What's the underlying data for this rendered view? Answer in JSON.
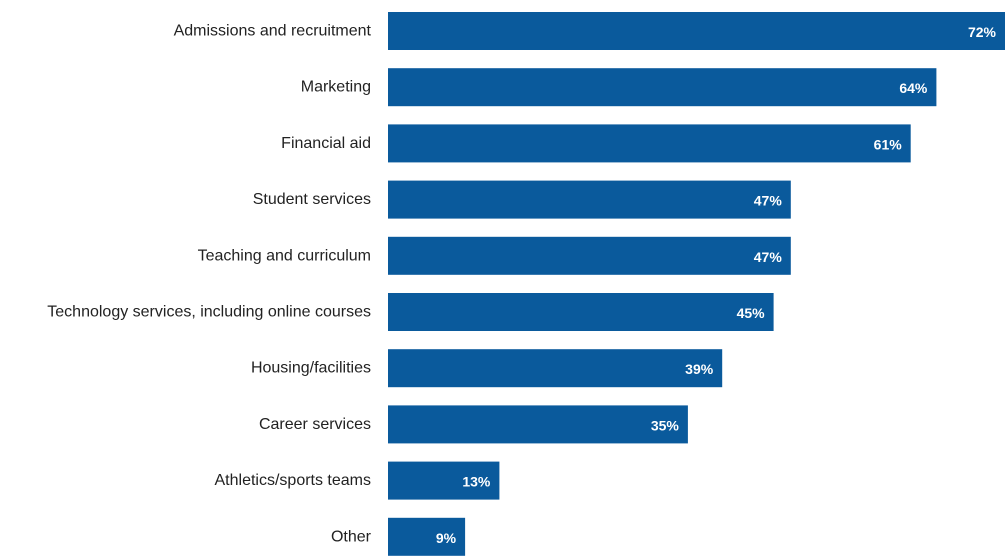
{
  "chart_data": {
    "type": "bar",
    "orientation": "horizontal",
    "categories": [
      "Admissions and recruitment",
      "Marketing",
      "Financial aid",
      "Student services",
      "Teaching and curriculum",
      "Technology services, including online courses",
      "Housing/facilities",
      "Career services",
      "Athletics/sports teams",
      "Other"
    ],
    "values": [
      72,
      64,
      61,
      47,
      47,
      45,
      39,
      35,
      13,
      9
    ],
    "value_labels": [
      "72%",
      "64%",
      "61%",
      "47%",
      "47%",
      "45%",
      "39%",
      "35%",
      "13%",
      "9%"
    ],
    "unit": "%",
    "xlim": [
      0,
      72
    ],
    "grid": false,
    "legend": "none",
    "bar_color": "#0a5a9c",
    "title": "",
    "xlabel": "",
    "ylabel": ""
  }
}
